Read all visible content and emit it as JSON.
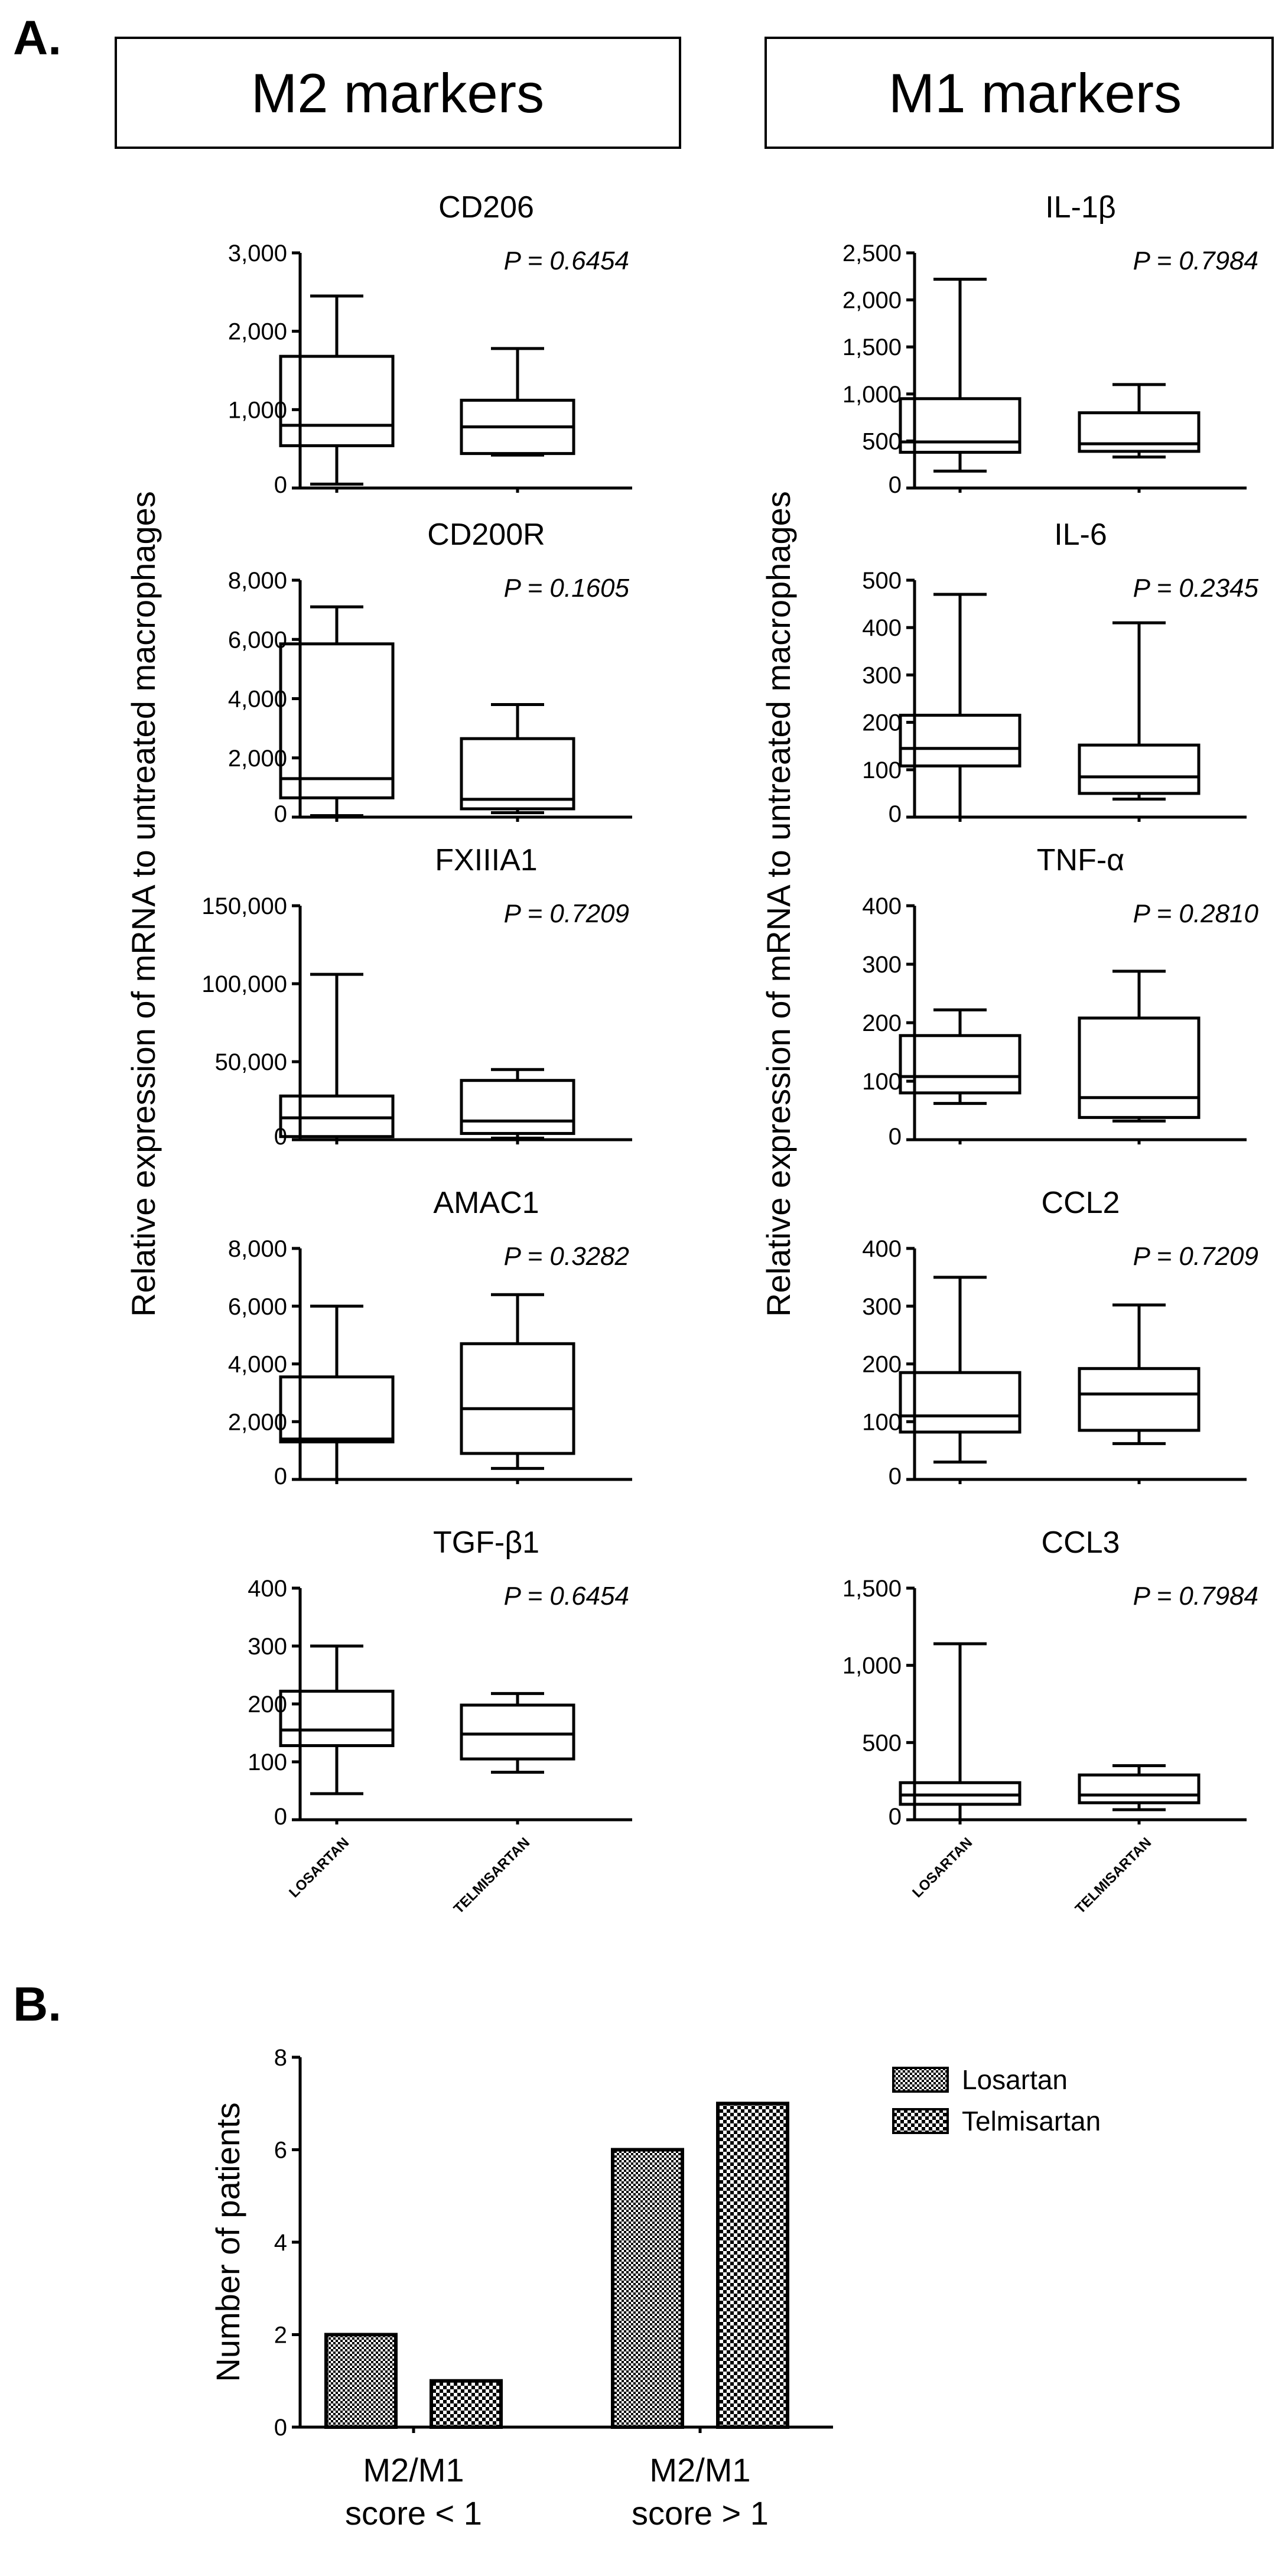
{
  "figure": {
    "panel_a_label": "A.",
    "panel_b_label": "B.",
    "m2_header": "M2 markers",
    "m1_header": "M1 markers",
    "y_axis_label": "Relative expression of mRNA to untreated macrophages"
  },
  "chart_data": [
    {
      "type": "box",
      "id": "cd206",
      "column": "M2",
      "title": "CD206",
      "p_value": "P = 0.6454",
      "ylim": [
        0,
        3000
      ],
      "ticks": [
        0,
        1000,
        2000,
        3000
      ],
      "tick_labels": [
        "0",
        "1,000",
        "2,000",
        "3,000"
      ],
      "categories": [],
      "boxes": [
        {
          "name": "Losartan",
          "min": 50,
          "q1": 540,
          "median": 800,
          "q3": 1680,
          "max": 2450
        },
        {
          "name": "Telmisartan",
          "min": 420,
          "q1": 440,
          "median": 780,
          "q3": 1120,
          "max": 1780
        }
      ]
    },
    {
      "type": "box",
      "id": "il1b",
      "column": "M1",
      "title": "IL-1β",
      "p_value": "P = 0.7984",
      "ylim": [
        0,
        2500
      ],
      "ticks": [
        0,
        500,
        1000,
        1500,
        2000,
        2500
      ],
      "tick_labels": [
        "0",
        "500",
        "1,000",
        "1,500",
        "2,000",
        "2,500"
      ],
      "categories": [],
      "boxes": [
        {
          "name": "Losartan",
          "min": 180,
          "q1": 380,
          "median": 490,
          "q3": 950,
          "max": 2220
        },
        {
          "name": "Telmisartan",
          "min": 330,
          "q1": 390,
          "median": 470,
          "q3": 800,
          "max": 1100
        }
      ]
    },
    {
      "type": "box",
      "id": "cd200r",
      "column": "M2",
      "title": "CD200R",
      "p_value": "P = 0.1605",
      "ylim": [
        0,
        8000
      ],
      "ticks": [
        0,
        2000,
        4000,
        6000,
        8000
      ],
      "tick_labels": [
        "0",
        "2,000",
        "4,000",
        "6,000",
        "8,000"
      ],
      "categories": [],
      "boxes": [
        {
          "name": "Losartan",
          "min": 50,
          "q1": 650,
          "median": 1300,
          "q3": 5850,
          "max": 7100
        },
        {
          "name": "Telmisartan",
          "min": 150,
          "q1": 280,
          "median": 600,
          "q3": 2650,
          "max": 3800
        }
      ]
    },
    {
      "type": "box",
      "id": "il6",
      "column": "M1",
      "title": "IL-6",
      "p_value": "P = 0.2345",
      "ylim": [
        0,
        500
      ],
      "ticks": [
        0,
        100,
        200,
        300,
        400,
        500
      ],
      "tick_labels": [
        "0",
        "100",
        "200",
        "300",
        "400",
        "500"
      ],
      "categories": [],
      "boxes": [
        {
          "name": "Losartan",
          "min": 0,
          "q1": 108,
          "median": 145,
          "q3": 215,
          "max": 470
        },
        {
          "name": "Telmisartan",
          "min": 38,
          "q1": 50,
          "median": 85,
          "q3": 152,
          "max": 410
        }
      ]
    },
    {
      "type": "box",
      "id": "fxiiia1",
      "column": "M2",
      "title": "FXIIIA1",
      "p_value": "P = 0.7209",
      "ylim": [
        0,
        150000
      ],
      "ticks": [
        0,
        50000,
        100000,
        150000
      ],
      "tick_labels": [
        "0",
        "50,000",
        "100,000",
        "150,000"
      ],
      "categories": [],
      "boxes": [
        {
          "name": "Losartan",
          "min": 0,
          "q1": 2000,
          "median": 14000,
          "q3": 28000,
          "max": 106000
        },
        {
          "name": "Telmisartan",
          "min": 1000,
          "q1": 4000,
          "median": 12000,
          "q3": 38000,
          "max": 45000
        }
      ]
    },
    {
      "type": "box",
      "id": "tnfa",
      "column": "M1",
      "title": "TNF-α",
      "p_value": "P = 0.2810",
      "ylim": [
        0,
        400
      ],
      "ticks": [
        0,
        100,
        200,
        300,
        400
      ],
      "tick_labels": [
        "0",
        "100",
        "200",
        "300",
        "400"
      ],
      "categories": [],
      "boxes": [
        {
          "name": "Losartan",
          "min": 62,
          "q1": 80,
          "median": 108,
          "q3": 178,
          "max": 222
        },
        {
          "name": "Telmisartan",
          "min": 32,
          "q1": 38,
          "median": 72,
          "q3": 208,
          "max": 288
        }
      ]
    },
    {
      "type": "box",
      "id": "amac1",
      "column": "M2",
      "title": "AMAC1",
      "p_value": "P = 0.3282",
      "ylim": [
        0,
        8000
      ],
      "ticks": [
        0,
        2000,
        4000,
        6000,
        8000
      ],
      "tick_labels": [
        "0",
        "2,000",
        "4,000",
        "6,000",
        "8,000"
      ],
      "categories": [],
      "boxes": [
        {
          "name": "Losartan",
          "min": 0,
          "q1": 1300,
          "median": 1400,
          "q3": 3550,
          "max": 6000
        },
        {
          "name": "Telmisartan",
          "min": 380,
          "q1": 900,
          "median": 2450,
          "q3": 4700,
          "max": 6400
        }
      ]
    },
    {
      "type": "box",
      "id": "ccl2",
      "column": "M1",
      "title": "CCL2",
      "p_value": "P = 0.7209",
      "ylim": [
        0,
        400
      ],
      "ticks": [
        0,
        100,
        200,
        300,
        400
      ],
      "tick_labels": [
        "0",
        "100",
        "200",
        "300",
        "400"
      ],
      "categories": [],
      "boxes": [
        {
          "name": "Losartan",
          "min": 30,
          "q1": 82,
          "median": 110,
          "q3": 185,
          "max": 350
        },
        {
          "name": "Telmisartan",
          "min": 62,
          "q1": 85,
          "median": 148,
          "q3": 192,
          "max": 302
        }
      ]
    },
    {
      "type": "box",
      "id": "tgfb1",
      "column": "M2",
      "title": "TGF-β1",
      "p_value": "P = 0.6454",
      "ylim": [
        0,
        400
      ],
      "ticks": [
        0,
        100,
        200,
        300,
        400
      ],
      "tick_labels": [
        "0",
        "100",
        "200",
        "300",
        "400"
      ],
      "categories": [
        "LOSARTAN",
        "TELMISARTAN"
      ],
      "boxes": [
        {
          "name": "Losartan",
          "min": 45,
          "q1": 128,
          "median": 155,
          "q3": 222,
          "max": 300
        },
        {
          "name": "Telmisartan",
          "min": 82,
          "q1": 105,
          "median": 148,
          "q3": 198,
          "max": 218
        }
      ]
    },
    {
      "type": "box",
      "id": "ccl3",
      "column": "M1",
      "title": "CCL3",
      "p_value": "P = 0.7984",
      "ylim": [
        0,
        1500
      ],
      "ticks": [
        0,
        500,
        1000,
        1500
      ],
      "tick_labels": [
        "0",
        "500",
        "1,000",
        "1,500"
      ],
      "categories": [
        "LOSARTAN",
        "TELMISARTAN"
      ],
      "boxes": [
        {
          "name": "Losartan",
          "min": 0,
          "q1": 100,
          "median": 160,
          "q3": 240,
          "max": 1140
        },
        {
          "name": "Telmisartan",
          "min": 65,
          "q1": 110,
          "median": 160,
          "q3": 290,
          "max": 350
        }
      ]
    },
    {
      "type": "bar",
      "id": "m2m1-score",
      "title": "",
      "ylabel": "Number of patients",
      "ylim": [
        0,
        8
      ],
      "ticks": [
        0,
        2,
        4,
        6,
        8
      ],
      "tick_labels": [
        "0",
        "2",
        "4",
        "6",
        "8"
      ],
      "categories": [
        [
          "M2/M1",
          "score < 1"
        ],
        [
          "M2/M1",
          "score > 1"
        ]
      ],
      "series": [
        {
          "name": "Losartan",
          "values": [
            2,
            6
          ]
        },
        {
          "name": "Telmisartan",
          "values": [
            1,
            7
          ]
        }
      ]
    }
  ]
}
